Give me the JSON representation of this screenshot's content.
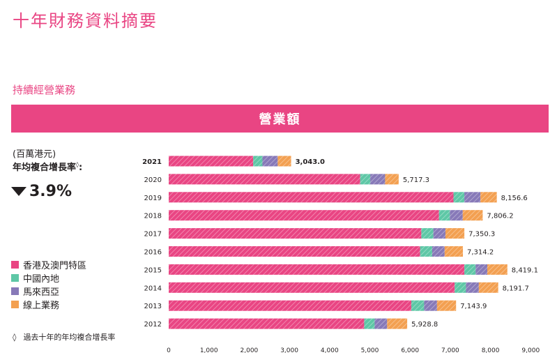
{
  "page_title": "十年財務資料摘要",
  "section_title": "持續經營業務",
  "banner_title": "營業額",
  "unit_label": "(百萬港元)",
  "cagr": {
    "label": "年均複合增長率",
    "marker": "◊",
    "colon": ":",
    "direction": "down",
    "value": "3.9%"
  },
  "footnote": {
    "marker": "◊",
    "text": "過去十年的年均複合增長率"
  },
  "colors": {
    "accent": "#e94583",
    "hk_macau": "#e94583",
    "mainland": "#5ec7a6",
    "malaysia": "#8779b8",
    "online": "#f3a051"
  },
  "chart_data": {
    "type": "bar",
    "orientation": "horizontal",
    "stacked": true,
    "categories": [
      "2021",
      "2020",
      "2019",
      "2018",
      "2017",
      "2016",
      "2015",
      "2014",
      "2013",
      "2012"
    ],
    "series": [
      {
        "name": "香港及澳門特區",
        "color": "#e94583",
        "values": [
          2100,
          4760,
          7080,
          6720,
          6280,
          6250,
          7350,
          7110,
          6030,
          4860
        ]
      },
      {
        "name": "中國內地",
        "color": "#5ec7a6",
        "values": [
          230,
          250,
          270,
          270,
          300,
          300,
          280,
          280,
          320,
          260
        ]
      },
      {
        "name": "馬來西亞",
        "color": "#8779b8",
        "values": [
          380,
          370,
          400,
          320,
          300,
          310,
          290,
          320,
          320,
          310
        ]
      },
      {
        "name": "線上業務",
        "color": "#f3a051",
        "values": [
          333,
          337.3,
          406.6,
          496.2,
          470.3,
          454.2,
          499.1,
          481.7,
          473.9,
          498.8
        ]
      }
    ],
    "totals": [
      "3,043.0",
      "5,717.3",
      "8,156.6",
      "7,806.2",
      "7,350.3",
      "7,314.2",
      "8,419.1",
      "8,191.7",
      "7,143.9",
      "5,928.8"
    ],
    "highlight_category": "2021",
    "xlim": [
      0,
      9000
    ],
    "xticks": [
      "0",
      "1,000",
      "2,000",
      "3,000",
      "4,000",
      "5,000",
      "6,000",
      "7,000",
      "8,000",
      "9,000"
    ],
    "xlabel": "",
    "ylabel": ""
  }
}
